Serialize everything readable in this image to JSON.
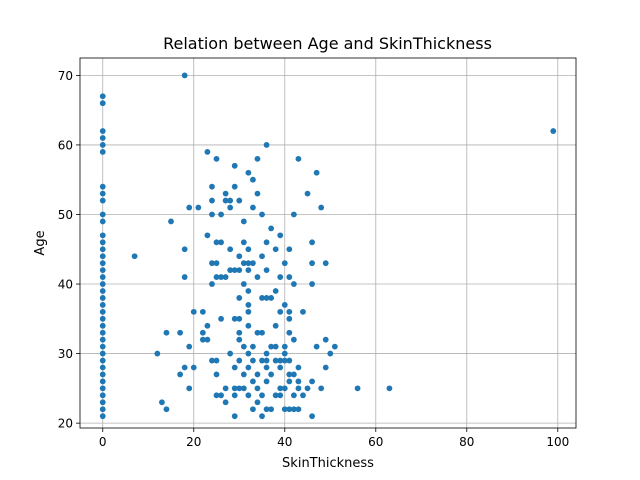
{
  "chart_data": {
    "type": "scatter",
    "title": "Relation between Age and SkinThickness",
    "xlabel": "SkinThickness",
    "ylabel": "Age",
    "xlim": [
      -5,
      104
    ],
    "ylim": [
      19.3,
      72.5
    ],
    "xticks": [
      0,
      20,
      40,
      60,
      80,
      100
    ],
    "yticks": [
      20,
      30,
      40,
      50,
      60,
      70
    ],
    "grid": true,
    "color": "#1f77b4",
    "points": [
      [
        0,
        21
      ],
      [
        0,
        22
      ],
      [
        0,
        23
      ],
      [
        0,
        24
      ],
      [
        0,
        25
      ],
      [
        0,
        26
      ],
      [
        0,
        27
      ],
      [
        0,
        28
      ],
      [
        0,
        29
      ],
      [
        0,
        30
      ],
      [
        0,
        31
      ],
      [
        0,
        32
      ],
      [
        0,
        33
      ],
      [
        0,
        34
      ],
      [
        0,
        35
      ],
      [
        0,
        36
      ],
      [
        0,
        37
      ],
      [
        0,
        38
      ],
      [
        0,
        39
      ],
      [
        0,
        40
      ],
      [
        0,
        41
      ],
      [
        0,
        42
      ],
      [
        0,
        43
      ],
      [
        0,
        44
      ],
      [
        0,
        45
      ],
      [
        0,
        46
      ],
      [
        0,
        47
      ],
      [
        0,
        49
      ],
      [
        0,
        50
      ],
      [
        0,
        52
      ],
      [
        0,
        53
      ],
      [
        0,
        54
      ],
      [
        0,
        59
      ],
      [
        0,
        60
      ],
      [
        0,
        61
      ],
      [
        0,
        62
      ],
      [
        0,
        66
      ],
      [
        0,
        67
      ],
      [
        7,
        44
      ],
      [
        12,
        30
      ],
      [
        13,
        23
      ],
      [
        14,
        22
      ],
      [
        14,
        33
      ],
      [
        15,
        49
      ],
      [
        17,
        27
      ],
      [
        17,
        33
      ],
      [
        18,
        28
      ],
      [
        18,
        41
      ],
      [
        18,
        45
      ],
      [
        18,
        70
      ],
      [
        19,
        25
      ],
      [
        19,
        31
      ],
      [
        19,
        51
      ],
      [
        20,
        28
      ],
      [
        20,
        36
      ],
      [
        21,
        51
      ],
      [
        22,
        32
      ],
      [
        22,
        33
      ],
      [
        22,
        36
      ],
      [
        23,
        32
      ],
      [
        23,
        34
      ],
      [
        23,
        47
      ],
      [
        23,
        59
      ],
      [
        24,
        29
      ],
      [
        24,
        40
      ],
      [
        24,
        43
      ],
      [
        24,
        50
      ],
      [
        24,
        52
      ],
      [
        24,
        54
      ],
      [
        25,
        24
      ],
      [
        25,
        27
      ],
      [
        25,
        29
      ],
      [
        25,
        41
      ],
      [
        25,
        43
      ],
      [
        25,
        46
      ],
      [
        25,
        58
      ],
      [
        26,
        24
      ],
      [
        26,
        35
      ],
      [
        26,
        41
      ],
      [
        26,
        46
      ],
      [
        26,
        50
      ],
      [
        27,
        23
      ],
      [
        27,
        25
      ],
      [
        27,
        41
      ],
      [
        27,
        52
      ],
      [
        27,
        53
      ],
      [
        28,
        30
      ],
      [
        28,
        42
      ],
      [
        28,
        45
      ],
      [
        28,
        51
      ],
      [
        28,
        52
      ],
      [
        29,
        21
      ],
      [
        29,
        24
      ],
      [
        29,
        25
      ],
      [
        29,
        28
      ],
      [
        29,
        35
      ],
      [
        29,
        42
      ],
      [
        29,
        54
      ],
      [
        29,
        57
      ],
      [
        30,
        25
      ],
      [
        30,
        29
      ],
      [
        30,
        32
      ],
      [
        30,
        33
      ],
      [
        30,
        35
      ],
      [
        30,
        38
      ],
      [
        30,
        42
      ],
      [
        30,
        44
      ],
      [
        30,
        52
      ],
      [
        31,
        25
      ],
      [
        31,
        27
      ],
      [
        31,
        31
      ],
      [
        31,
        40
      ],
      [
        31,
        43
      ],
      [
        31,
        46
      ],
      [
        31,
        49
      ],
      [
        32,
        24
      ],
      [
        32,
        28
      ],
      [
        32,
        30
      ],
      [
        32,
        34
      ],
      [
        32,
        36
      ],
      [
        32,
        37
      ],
      [
        32,
        39
      ],
      [
        32,
        42
      ],
      [
        32,
        43
      ],
      [
        32,
        45
      ],
      [
        32,
        56
      ],
      [
        33,
        22
      ],
      [
        33,
        26
      ],
      [
        33,
        29
      ],
      [
        33,
        31
      ],
      [
        33,
        43
      ],
      [
        33,
        51
      ],
      [
        33,
        55
      ],
      [
        34,
        23
      ],
      [
        34,
        25
      ],
      [
        34,
        27
      ],
      [
        34,
        33
      ],
      [
        34,
        41
      ],
      [
        34,
        53
      ],
      [
        34,
        58
      ],
      [
        35,
        21
      ],
      [
        35,
        24
      ],
      [
        35,
        29
      ],
      [
        35,
        33
      ],
      [
        35,
        38
      ],
      [
        35,
        44
      ],
      [
        35,
        50
      ],
      [
        36,
        22
      ],
      [
        36,
        26
      ],
      [
        36,
        28
      ],
      [
        36,
        29
      ],
      [
        36,
        30
      ],
      [
        36,
        38
      ],
      [
        36,
        42
      ],
      [
        36,
        46
      ],
      [
        36,
        60
      ],
      [
        37,
        22
      ],
      [
        37,
        27
      ],
      [
        37,
        31
      ],
      [
        37,
        38
      ],
      [
        37,
        48
      ],
      [
        38,
        24
      ],
      [
        38,
        29
      ],
      [
        38,
        31
      ],
      [
        38,
        34
      ],
      [
        38,
        39
      ],
      [
        38,
        45
      ],
      [
        39,
        24
      ],
      [
        39,
        25
      ],
      [
        39,
        28
      ],
      [
        39,
        29
      ],
      [
        39,
        36
      ],
      [
        39,
        41
      ],
      [
        39,
        47
      ],
      [
        40,
        22
      ],
      [
        40,
        25
      ],
      [
        40,
        29
      ],
      [
        40,
        30
      ],
      [
        40,
        31
      ],
      [
        40,
        37
      ],
      [
        40,
        43
      ],
      [
        41,
        22
      ],
      [
        41,
        26
      ],
      [
        41,
        27
      ],
      [
        41,
        29
      ],
      [
        41,
        33
      ],
      [
        41,
        35
      ],
      [
        41,
        36
      ],
      [
        41,
        41
      ],
      [
        41,
        45
      ],
      [
        42,
        22
      ],
      [
        42,
        24
      ],
      [
        42,
        27
      ],
      [
        42,
        32
      ],
      [
        42,
        40
      ],
      [
        42,
        50
      ],
      [
        43,
        22
      ],
      [
        43,
        25
      ],
      [
        43,
        26
      ],
      [
        43,
        28
      ],
      [
        43,
        58
      ],
      [
        44,
        24
      ],
      [
        44,
        36
      ],
      [
        45,
        25
      ],
      [
        45,
        53
      ],
      [
        46,
        21
      ],
      [
        46,
        26
      ],
      [
        46,
        40
      ],
      [
        46,
        43
      ],
      [
        46,
        46
      ],
      [
        47,
        31
      ],
      [
        47,
        56
      ],
      [
        48,
        25
      ],
      [
        48,
        51
      ],
      [
        49,
        28
      ],
      [
        49,
        32
      ],
      [
        49,
        43
      ],
      [
        50,
        30
      ],
      [
        51,
        31
      ],
      [
        56,
        25
      ],
      [
        63,
        25
      ],
      [
        99,
        62
      ]
    ]
  }
}
